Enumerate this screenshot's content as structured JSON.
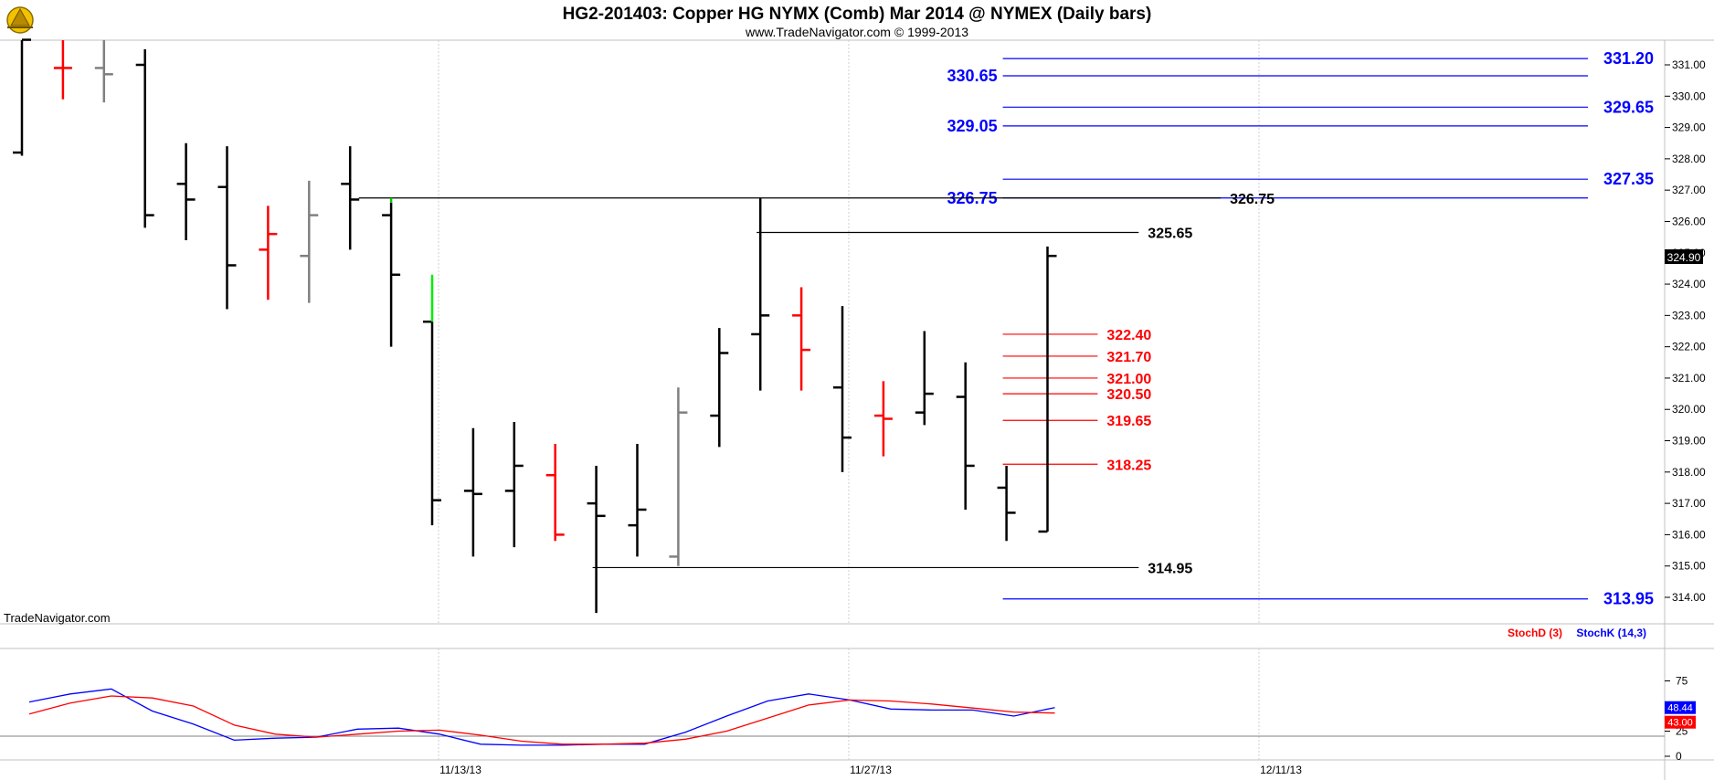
{
  "chart_data": {
    "type": "ohlc",
    "title": "HG2-201403:  Copper HG NYMX (Comb) Mar 2014 @ NYMEX  (Daily bars)",
    "subtitle": "www.TradeNavigator.com © 1999-2013",
    "watermark": "TradeNavigator.com",
    "price_axis": {
      "range": [
        313.25,
        331.8
      ],
      "ticks": [
        "331.00",
        "330.00",
        "329.00",
        "328.00",
        "327.00",
        "326.00",
        "325.00",
        "324.00",
        "323.00",
        "322.00",
        "321.00",
        "320.00",
        "319.00",
        "318.00",
        "317.00",
        "316.00",
        "315.00",
        "314.00"
      ],
      "last_price": "324.90"
    },
    "date_axis": {
      "labels": [
        {
          "bar": 10,
          "text": "11/13/13"
        },
        {
          "bar": 20,
          "text": "11/27/13"
        },
        {
          "bar": 30,
          "text": "12/11/13"
        }
      ]
    },
    "bars": [
      {
        "o": 328.2,
        "h": 331.8,
        "l": 328.1,
        "c": 331.8,
        "color": "#000000"
      },
      {
        "o": 330.9,
        "h": 331.8,
        "l": 329.9,
        "c": 330.9,
        "color": "#ff0000"
      },
      {
        "o": 330.9,
        "h": 331.8,
        "l": 329.8,
        "c": 330.7,
        "color": "#808080"
      },
      {
        "o": 331.0,
        "h": 331.5,
        "l": 325.8,
        "c": 326.2,
        "color": "#000000"
      },
      {
        "o": 327.2,
        "h": 328.5,
        "l": 325.4,
        "c": 326.7,
        "color": "#000000"
      },
      {
        "o": 327.1,
        "h": 328.4,
        "l": 323.2,
        "c": 324.6,
        "color": "#000000"
      },
      {
        "o": 325.1,
        "h": 326.5,
        "l": 323.5,
        "c": 325.6,
        "color": "#ff0000"
      },
      {
        "o": 324.9,
        "h": 327.3,
        "l": 323.4,
        "c": 326.2,
        "color": "#808080"
      },
      {
        "o": 327.2,
        "h": 328.4,
        "l": 325.1,
        "c": 326.7,
        "color": "#000000"
      },
      {
        "o": 326.2,
        "h": 326.6,
        "l": 322.0,
        "c": 324.3,
        "color": "#000000",
        "ext_high": 326.75,
        "ext_color": "#00cc00"
      },
      {
        "o": 322.8,
        "h": 322.8,
        "l": 316.3,
        "c": 317.1,
        "color": "#000000",
        "ext_high": 324.3,
        "ext_color": "#00ee00"
      },
      {
        "o": 317.4,
        "h": 319.4,
        "l": 315.3,
        "c": 317.3,
        "color": "#000000"
      },
      {
        "o": 317.4,
        "h": 319.6,
        "l": 315.6,
        "c": 318.2,
        "color": "#000000"
      },
      {
        "o": 317.9,
        "h": 318.9,
        "l": 315.8,
        "c": 316.0,
        "color": "#ff0000"
      },
      {
        "o": 317.0,
        "h": 318.2,
        "l": 313.5,
        "c": 316.6,
        "color": "#000000"
      },
      {
        "o": 316.3,
        "h": 318.9,
        "l": 315.3,
        "c": 316.8,
        "color": "#000000"
      },
      {
        "o": 315.3,
        "h": 320.7,
        "l": 315.0,
        "c": 319.9,
        "color": "#808080"
      },
      {
        "o": 319.8,
        "h": 322.6,
        "l": 318.8,
        "c": 321.8,
        "color": "#000000"
      },
      {
        "o": 322.4,
        "h": 326.75,
        "l": 320.6,
        "c": 323.0,
        "color": "#000000"
      },
      {
        "o": 323.0,
        "h": 323.9,
        "l": 320.6,
        "c": 321.9,
        "color": "#ff0000"
      },
      {
        "o": 320.7,
        "h": 323.3,
        "l": 318.0,
        "c": 319.1,
        "color": "#000000"
      },
      {
        "o": 319.8,
        "h": 320.9,
        "l": 318.5,
        "c": 319.7,
        "color": "#ff0000"
      },
      {
        "o": 319.9,
        "h": 322.5,
        "l": 319.5,
        "c": 320.5,
        "color": "#000000"
      },
      {
        "o": 320.4,
        "h": 321.5,
        "l": 316.8,
        "c": 318.2,
        "color": "#000000"
      },
      {
        "o": 317.5,
        "h": 318.2,
        "l": 315.8,
        "c": 316.7,
        "color": "#000000"
      },
      {
        "o": 316.1,
        "h": 325.2,
        "l": 316.1,
        "c": 324.9,
        "color": "#000000"
      }
    ],
    "levels": [
      {
        "price": 331.2,
        "label": "331.20",
        "color": "#0000ff",
        "from_bar": 24,
        "to_bar": 35,
        "label_side": "right-axis"
      },
      {
        "price": 330.65,
        "label": "330.65",
        "color": "#0000ff",
        "from_bar": 24,
        "to_bar": 35,
        "label_side": "left"
      },
      {
        "price": 329.65,
        "label": "329.65",
        "color": "#0000ff",
        "from_bar": 24,
        "to_bar": 35,
        "label_side": "right-axis"
      },
      {
        "price": 329.05,
        "label": "329.05",
        "color": "#0000ff",
        "from_bar": 24,
        "to_bar": 35,
        "label_side": "left"
      },
      {
        "price": 327.35,
        "label": "327.35",
        "color": "#0000ff",
        "from_bar": 24,
        "to_bar": 35,
        "label_side": "right-axis"
      },
      {
        "price": 326.75,
        "label": "326.75",
        "color": "#0000ff",
        "from_bar": 24,
        "to_bar": 35,
        "label_side": "left"
      },
      {
        "price": 326.75,
        "label": "326.75",
        "color": "#000000",
        "from_bar": 8.3,
        "to_bar": 29,
        "label_side": "end"
      },
      {
        "price": 325.65,
        "label": "325.65",
        "color": "#000000",
        "from_bar": 18,
        "to_bar": 27,
        "label_side": "end"
      },
      {
        "price": 314.95,
        "label": "314.95",
        "color": "#000000",
        "from_bar": 14,
        "to_bar": 27,
        "label_side": "end"
      },
      {
        "price": 313.95,
        "label": "313.95",
        "color": "#0000ff",
        "from_bar": 24,
        "to_bar": 35,
        "label_side": "right-axis"
      },
      {
        "price": 322.4,
        "label": "322.40",
        "color": "#ff0000",
        "from_bar": 24,
        "to_bar": 26,
        "label_side": "end"
      },
      {
        "price": 321.7,
        "label": "321.70",
        "color": "#ff0000",
        "from_bar": 24,
        "to_bar": 26,
        "label_side": "end"
      },
      {
        "price": 321.0,
        "label": "321.00",
        "color": "#ff0000",
        "from_bar": 24,
        "to_bar": 26,
        "label_side": "end"
      },
      {
        "price": 320.5,
        "label": "320.50",
        "color": "#ff0000",
        "from_bar": 24,
        "to_bar": 26,
        "label_side": "end"
      },
      {
        "price": 319.65,
        "label": "319.65",
        "color": "#ff0000",
        "from_bar": 24,
        "to_bar": 26,
        "label_side": "end"
      },
      {
        "price": 318.25,
        "label": "318.25",
        "color": "#ff0000",
        "from_bar": 24,
        "to_bar": 26,
        "label_side": "end"
      }
    ],
    "oscillator": {
      "legend": [
        {
          "name": "StochD (3)",
          "color": "#ff0000"
        },
        {
          "name": "StochK (14,3)",
          "color": "#0000ff"
        }
      ],
      "range": [
        0,
        100
      ],
      "ticks": [
        "75",
        "50",
        "25",
        "0"
      ],
      "reference_line": 20,
      "last_k": "48.44",
      "last_d": "43.00",
      "series": [
        {
          "name": "StochK (14,3)",
          "color": "#0000ff",
          "values": [
            54,
            62,
            67,
            45,
            32,
            16,
            18,
            19,
            27,
            28,
            22,
            12,
            11,
            11,
            12,
            12,
            24,
            40,
            55,
            62,
            56,
            47,
            46,
            46,
            40,
            48.44
          ]
        },
        {
          "name": "StochD (3)",
          "color": "#ff0000",
          "values": [
            42,
            53,
            60,
            58,
            50,
            31,
            22,
            19,
            22,
            25,
            26,
            21,
            15,
            12,
            12,
            13,
            17,
            25,
            38,
            51,
            56,
            55,
            52,
            48,
            44,
            43.0
          ]
        }
      ]
    }
  }
}
